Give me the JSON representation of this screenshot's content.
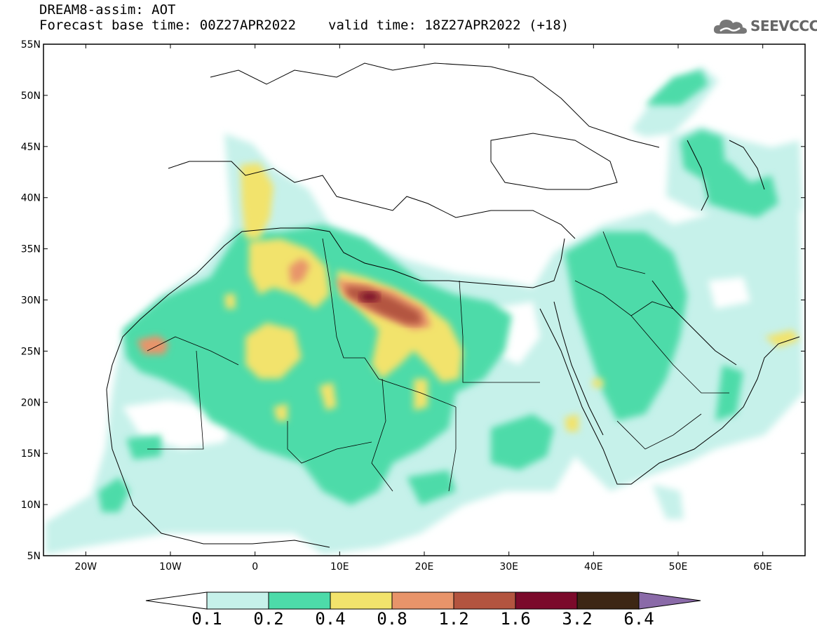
{
  "title": {
    "product": "DREAM8-assim: AOT",
    "base_time": "Forecast base time: 00Z27APR2022",
    "valid_time": "valid time: 18Z27APR2022 (+18)"
  },
  "logo": {
    "text": "SEEVCCC",
    "icon": "cloud-icon"
  },
  "map": {
    "lat_range": [
      5,
      55
    ],
    "lon_range": [
      -25,
      65
    ],
    "lat_ticks": [
      {
        "value": 55,
        "label": "55N"
      },
      {
        "value": 50,
        "label": "50N"
      },
      {
        "value": 45,
        "label": "45N"
      },
      {
        "value": 40,
        "label": "40N"
      },
      {
        "value": 35,
        "label": "35N"
      },
      {
        "value": 30,
        "label": "30N"
      },
      {
        "value": 25,
        "label": "25N"
      },
      {
        "value": 20,
        "label": "20N"
      },
      {
        "value": 15,
        "label": "15N"
      },
      {
        "value": 10,
        "label": "10N"
      },
      {
        "value": 5,
        "label": "5N"
      }
    ],
    "lon_ticks": [
      {
        "value": -20,
        "label": "20W"
      },
      {
        "value": -10,
        "label": "10W"
      },
      {
        "value": 0,
        "label": "0"
      },
      {
        "value": 10,
        "label": "10E"
      },
      {
        "value": 20,
        "label": "20E"
      },
      {
        "value": 30,
        "label": "30E"
      },
      {
        "value": 40,
        "label": "40E"
      },
      {
        "value": 50,
        "label": "50E"
      },
      {
        "value": 60,
        "label": "60E"
      }
    ]
  },
  "colorbar": {
    "colors": [
      "#ffffff",
      "#c6f1ea",
      "#4ddba9",
      "#f2e36c",
      "#e8946a",
      "#b3543f",
      "#7b0a2b",
      "#3d2614",
      "#8a6aa8"
    ],
    "labels": [
      "0.1",
      "0.2",
      "0.4",
      "0.8",
      "1.2",
      "1.6",
      "3.2",
      "6.4"
    ]
  },
  "colors": {
    "land_border": "#000000",
    "frame": "#000000"
  }
}
